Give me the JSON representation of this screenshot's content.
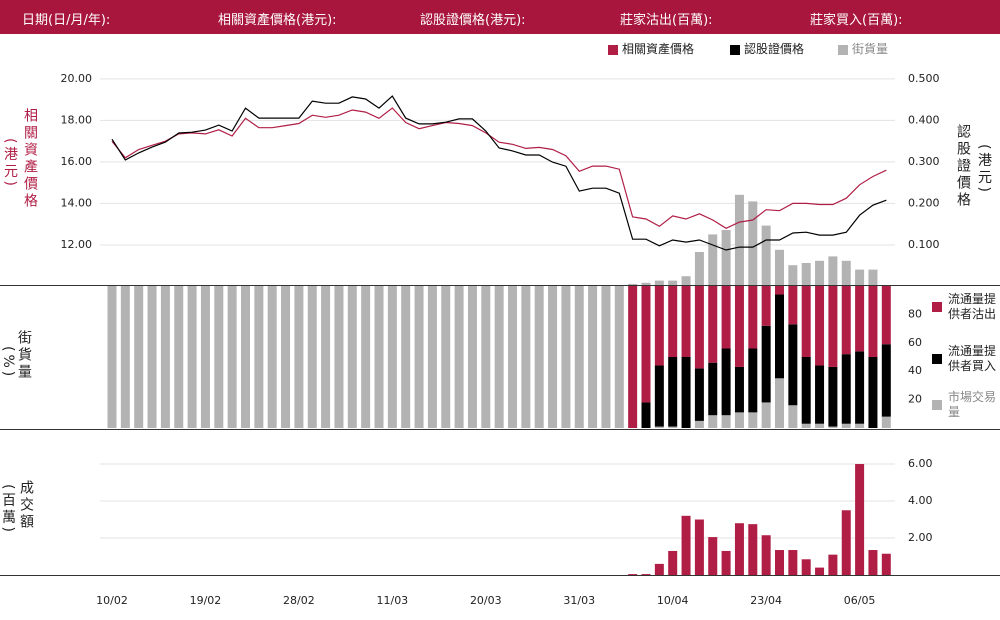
{
  "header": {
    "labels": [
      "日期(日/月/年):",
      "相關資產價格(港元):",
      "認股證價格(港元):",
      "莊家沽出(百萬):",
      "莊家買入(百萬):"
    ]
  },
  "chart_data": [
    {
      "type": "line",
      "y_label": "相關資產價格",
      "y_unit": "(港元)",
      "y2_label": "認股證價格",
      "y2_unit": "(港元)",
      "categories": [
        "10/02",
        null,
        null,
        null,
        null,
        null,
        null,
        "19/02",
        null,
        null,
        null,
        null,
        null,
        null,
        "28/02",
        null,
        null,
        null,
        null,
        null,
        null,
        "11/03",
        null,
        null,
        null,
        null,
        null,
        null,
        "20/03",
        null,
        null,
        null,
        null,
        null,
        null,
        "31/03",
        null,
        null,
        null,
        null,
        null,
        null,
        "10/04",
        null,
        null,
        null,
        null,
        null,
        null,
        "23/04",
        null,
        null,
        null,
        null,
        null,
        null,
        "06/05",
        null,
        null
      ],
      "ylim": [
        10.07,
        20.67
      ],
      "yticks": [
        {
          "value": 12,
          "label": "12.00"
        },
        {
          "value": 14,
          "label": "14.00"
        },
        {
          "value": 16,
          "label": "16.00"
        },
        {
          "value": 18,
          "label": "18.00"
        },
        {
          "value": 20,
          "label": "20.00"
        }
      ],
      "y2lim": [
        0.0036,
        0.534
      ],
      "y2ticks": [
        {
          "value": 0.1,
          "label": "0.100"
        },
        {
          "value": 0.2,
          "label": "0.200"
        },
        {
          "value": 0.3,
          "label": "0.300"
        },
        {
          "value": 0.4,
          "label": "0.400"
        },
        {
          "value": 0.5,
          "label": "0.500"
        }
      ],
      "y3lim": [
        0,
        100
      ],
      "grid": true,
      "series": [
        {
          "name": "相關資產價格",
          "color": "#b01e45",
          "type": "line",
          "axis": "y",
          "values": [
            17.0,
            16.2,
            16.6,
            16.8,
            17.0,
            17.35,
            17.4,
            17.35,
            17.55,
            17.25,
            18.1,
            17.65,
            17.65,
            17.75,
            17.85,
            18.25,
            18.15,
            18.25,
            18.5,
            18.4,
            18.1,
            18.6,
            17.9,
            17.6,
            17.75,
            17.9,
            17.85,
            17.75,
            17.4,
            16.95,
            16.85,
            16.65,
            16.7,
            16.6,
            16.3,
            15.55,
            15.8,
            15.8,
            15.65,
            13.35,
            13.25,
            12.9,
            13.4,
            13.25,
            13.5,
            13.2,
            12.8,
            13.1,
            13.2,
            13.7,
            13.65,
            14.0,
            14.0,
            13.95,
            13.95,
            14.25,
            14.9,
            15.3,
            15.6
          ]
        },
        {
          "name": "認股證價格",
          "color": "#000000",
          "type": "line",
          "axis": "y2",
          "values": [
            0.355,
            0.305,
            0.322,
            0.336,
            0.348,
            0.37,
            0.372,
            0.377,
            0.389,
            0.375,
            0.43,
            0.406,
            0.406,
            0.406,
            0.406,
            0.447,
            0.442,
            0.442,
            0.457,
            0.452,
            0.43,
            0.459,
            0.406,
            0.392,
            0.392,
            0.396,
            0.404,
            0.404,
            0.375,
            0.334,
            0.327,
            0.317,
            0.317,
            0.3,
            0.29,
            0.23,
            0.237,
            0.237,
            0.225,
            0.114,
            0.114,
            0.098,
            0.112,
            0.107,
            0.112,
            0.1,
            0.088,
            0.095,
            0.095,
            0.112,
            0.112,
            0.129,
            0.131,
            0.124,
            0.124,
            0.131,
            0.172,
            0.196,
            0.208
          ]
        },
        {
          "name": "街貨量",
          "color": "#b3b3b3",
          "type": "bar",
          "axis": "y3",
          "values": [
            null,
            null,
            null,
            null,
            null,
            null,
            null,
            null,
            null,
            null,
            null,
            null,
            null,
            null,
            null,
            null,
            null,
            null,
            null,
            null,
            null,
            null,
            null,
            null,
            null,
            null,
            null,
            null,
            null,
            null,
            null,
            null,
            null,
            null,
            null,
            null,
            null,
            null,
            null,
            0.5,
            1,
            2,
            2,
            4,
            15,
            23,
            25,
            41,
            38,
            27,
            16,
            9,
            10,
            11,
            13,
            11,
            7,
            7,
            null
          ]
        }
      ]
    },
    {
      "type": "stacked_bar",
      "y_label": "街貨量",
      "y_unit": "(%)",
      "ylim": [
        0,
        100
      ],
      "yticks": [
        20,
        40,
        60,
        80
      ],
      "grid": false,
      "series": [
        {
          "name": "流通量提供者沽出",
          "color": "#b01e45",
          "values": [
            0,
            0,
            0,
            0,
            0,
            0,
            0,
            0,
            0,
            0,
            0,
            0,
            0,
            0,
            0,
            0,
            0,
            0,
            0,
            0,
            0,
            0,
            0,
            0,
            0,
            0,
            0,
            0,
            0,
            0,
            0,
            0,
            0,
            0,
            0,
            0,
            0,
            0,
            0,
            100,
            82,
            56,
            50,
            50,
            58,
            54,
            44,
            57,
            44,
            28,
            6,
            27,
            50,
            56,
            57,
            48,
            46,
            50,
            41
          ]
        },
        {
          "name": "流通量提供者買入",
          "color": "#000000",
          "values": [
            0,
            0,
            0,
            0,
            0,
            0,
            0,
            0,
            0,
            0,
            0,
            0,
            0,
            0,
            0,
            0,
            0,
            0,
            0,
            0,
            0,
            0,
            0,
            0,
            0,
            0,
            0,
            0,
            0,
            0,
            0,
            0,
            0,
            0,
            0,
            0,
            0,
            0,
            0,
            0,
            18,
            43,
            49,
            50,
            37,
            37,
            47,
            32,
            45,
            54,
            59,
            57,
            47,
            41,
            42,
            49,
            51,
            50,
            51
          ]
        },
        {
          "name": "市場交易量",
          "color": "#b3b3b3",
          "values": [
            100,
            100,
            100,
            100,
            100,
            100,
            100,
            100,
            100,
            100,
            100,
            100,
            100,
            100,
            100,
            100,
            100,
            100,
            100,
            100,
            100,
            100,
            100,
            100,
            100,
            100,
            100,
            100,
            100,
            100,
            100,
            100,
            100,
            100,
            100,
            100,
            100,
            100,
            100,
            0,
            0,
            1,
            1,
            0,
            5,
            9,
            9,
            11,
            11,
            18,
            35,
            16,
            3,
            3,
            1,
            3,
            3,
            0,
            8
          ]
        }
      ]
    },
    {
      "type": "bar",
      "y_label": "成交額",
      "y_unit": "(百萬)",
      "ylim": [
        0,
        7.84
      ],
      "yticks": [
        {
          "value": 2,
          "label": "2.00"
        },
        {
          "value": 4,
          "label": "4.00"
        },
        {
          "value": 6,
          "label": "6.00"
        }
      ],
      "grid": true,
      "color": "#b01e45",
      "values": [
        null,
        null,
        null,
        null,
        null,
        null,
        null,
        null,
        null,
        null,
        null,
        null,
        null,
        null,
        null,
        null,
        null,
        null,
        null,
        null,
        null,
        null,
        null,
        null,
        null,
        null,
        null,
        null,
        null,
        null,
        null,
        null,
        null,
        null,
        null,
        null,
        null,
        null,
        null,
        0.05,
        0.05,
        0.6,
        1.3,
        3.2,
        3.0,
        2.05,
        1.3,
        2.8,
        2.75,
        2.15,
        1.35,
        1.35,
        0.85,
        0.4,
        1.1,
        3.5,
        6.0,
        1.35,
        1.15
      ]
    }
  ]
}
